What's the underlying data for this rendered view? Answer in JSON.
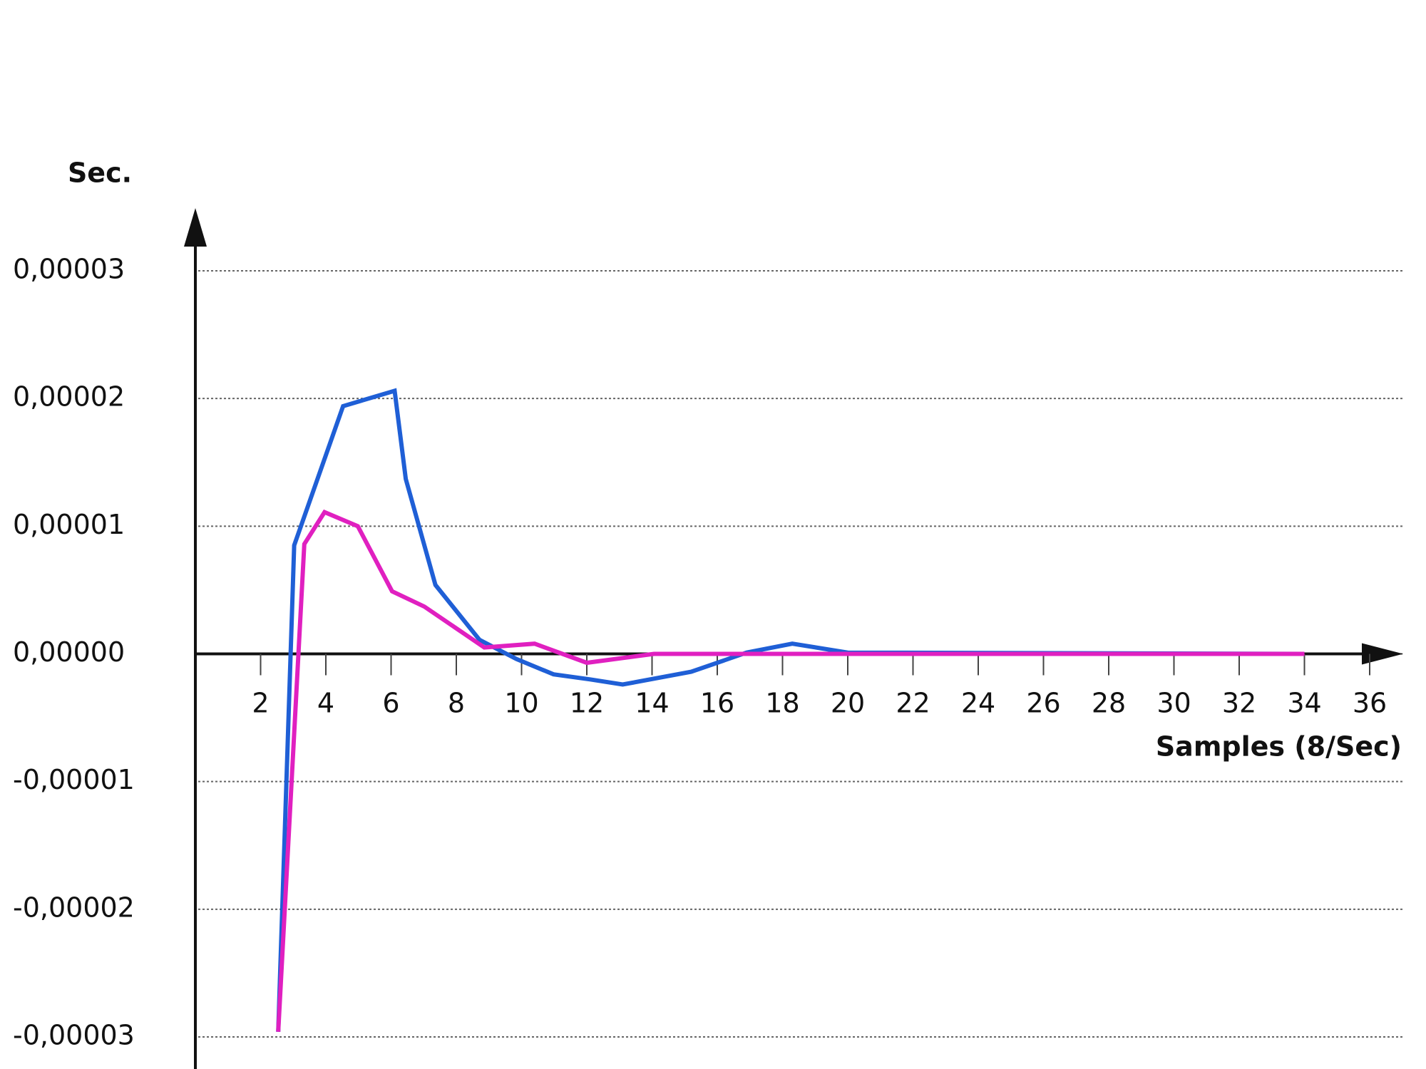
{
  "chart_data": {
    "type": "line",
    "y_label": "Sec.",
    "x_label": "Samples (8/Sec)",
    "xlim": [
      0,
      36
    ],
    "xticks": [
      2,
      4,
      6,
      8,
      10,
      12,
      14,
      16,
      18,
      20,
      22,
      24,
      26,
      28,
      30,
      32,
      34,
      36
    ],
    "ylim": [
      -3e-05,
      3e-05
    ],
    "yticks": [
      {
        "value": -3e-05,
        "label": "-0,00003"
      },
      {
        "value": -2e-05,
        "label": "-0,00002"
      },
      {
        "value": -1e-05,
        "label": "-0,00001"
      },
      {
        "value": 0,
        "label": "0,00000"
      },
      {
        "value": 1e-05,
        "label": "0,00001"
      },
      {
        "value": 2e-05,
        "label": "0,00002"
      },
      {
        "value": 3e-05,
        "label": "0,00003"
      }
    ],
    "grid": true,
    "series": [
      {
        "color": "#1f5fd6",
        "x": [
          2.54,
          3.03,
          4.53,
          6.11,
          6.45,
          7.36,
          8.71,
          9.84,
          10.98,
          12.1,
          13.1,
          15.2,
          16.9,
          18.3,
          20.0,
          34
        ],
        "values": [
          -2.96e-05,
          8.5e-06,
          1.94e-05,
          2.06e-05,
          1.37e-05,
          5.4e-06,
          1.1e-06,
          -4e-07,
          -1.6e-06,
          -2e-06,
          -2.4e-06,
          -1.4e-06,
          1e-07,
          8e-07,
          1e-07,
          0
        ]
      },
      {
        "color": "#e020c0",
        "x": [
          2.54,
          3.34,
          3.96,
          4.98,
          6.03,
          7.02,
          8.86,
          10.4,
          12.0,
          14.06,
          34
        ],
        "values": [
          -2.96e-05,
          8.6e-06,
          1.11e-05,
          1e-05,
          4.9e-06,
          3.7e-06,
          5e-07,
          8e-07,
          -7e-07,
          0,
          0
        ]
      }
    ]
  }
}
